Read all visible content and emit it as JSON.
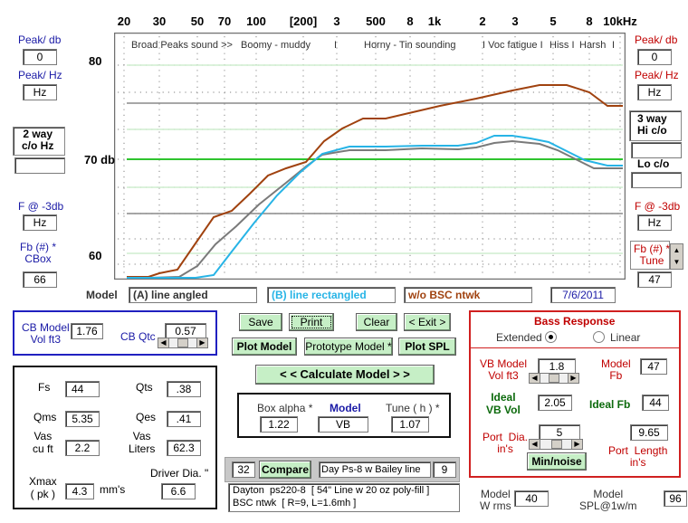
{
  "freq_axis": [
    "20",
    "30",
    "50",
    "70",
    "100",
    "[200]",
    "3",
    "500",
    "8",
    "1k",
    "2",
    "3",
    "5",
    "8",
    "10kHz"
  ],
  "regions": [
    "Broad Peaks sound  >>",
    "Boomy - muddy",
    "I",
    "Horny - Tin sounding",
    "I Voc fatigue I",
    "Hiss I",
    "Harsh",
    "I"
  ],
  "db_labels": {
    "top": "80",
    "mid": "70  db",
    "bottom": "60"
  },
  "left": {
    "peak_db_label": "Peak/ db",
    "peak_db_value": "0",
    "peak_hz_label": "Peak/ Hz",
    "peak_hz_value": "Hz",
    "two_way_label": "2 way\nc/o Hz",
    "two_way_value": "",
    "f3_label": "F @ -3db",
    "f3_value": "Hz",
    "fb_label": "Fb (#) *\nCBox",
    "fb_value": "66"
  },
  "right": {
    "peak_db_label": "Peak/ db",
    "peak_db_value": "0",
    "peak_hz_label": "Peak/ Hz",
    "peak_hz_value": "Hz",
    "three_way_label": "3 way\nHi c/o",
    "three_way_value": "",
    "lo_co_label": "Lo c/o",
    "lo_co_value": "",
    "f3_label": "F @ -3db",
    "f3_value": "Hz",
    "fb_label": "Fb (#) *\nTune",
    "fb_value": "47"
  },
  "model_row": {
    "label": "Model",
    "a": "(A) line angled",
    "b": "(B) line rectangled",
    "c": "w/o BSC ntwk",
    "date": "7/6/2011"
  },
  "cb_model": {
    "vol_label": "CB Model\nVol ft3",
    "vol_value": "1.76",
    "qtc_label": "CB Qtc",
    "qtc_value": "0.57",
    "qtc_slider_level": 0.5
  },
  "buttons": {
    "save": "Save",
    "print": "Print",
    "clear": "Clear",
    "exit": "< Exit >",
    "plot_model": "Plot Model",
    "prototype_model": "Prototype  Model *",
    "plot_spl": "Plot SPL",
    "calculate": "< <    Calculate  Model   > >",
    "compare": "Compare",
    "min_noise": "Min/noise"
  },
  "params": {
    "fs_label": "Fs",
    "fs": "44",
    "qts_label": "Qts",
    "qts": ".38",
    "qms_label": "Qms",
    "qms": "5.35",
    "qes_label": "Qes",
    "qes": ".41",
    "vas_cuft_label": "Vas\ncu ft",
    "vas_cuft": "2.2",
    "vas_l_label": "Vas\nLiters",
    "vas_l": "62.3",
    "xmax_label": "Xmax\n( pk )",
    "xmax": "4.3",
    "xmax_unit": "mm's",
    "dia_label": "Driver Dia. \"",
    "dia": "6.6"
  },
  "box_model": {
    "alpha_label": "Box alpha *",
    "alpha": "1.22",
    "model_label": "Model",
    "model": "VB",
    "tune_label": "Tune ( h ) *",
    "tune": "1.07"
  },
  "compare": {
    "num": "32",
    "name": "Day Ps-8 w Bailey line",
    "num2": "9",
    "description": "Dayton  ps220-8  [ 54\" Line w 20 oz poly-fill ]\nBSC ntwk  [ R=9, L=1.6mh ]"
  },
  "bass": {
    "title": "Bass Response",
    "extended": "Extended",
    "linear": "Linear",
    "selected": "Extended",
    "vb_label": "VB Model\nVol ft3",
    "vb": "1.8",
    "vb_slider_level": 0.5,
    "model_fb_label": "Model\nFb",
    "model_fb": "47",
    "ideal_vb_label": "Ideal\nVB Vol",
    "ideal_vb": "2.05",
    "ideal_fb_label": "Ideal Fb",
    "ideal_fb": "44",
    "port_dia_label": "Port  Dia.\nin's",
    "port_dia": "5",
    "port_dia_slider_level": 0.55,
    "port_len_label": "Port  Length\nin's",
    "port_len": "9.65"
  },
  "bottom": {
    "wrms_label": "Model\nW rms",
    "wrms": "40",
    "spl_label": "Model\nSPL@1w/m",
    "spl": "96"
  },
  "colors": {
    "line_a": "#a0420f",
    "line_b": "#27b4e6",
    "line_c": "#7a7a7a",
    "ref_green": "#2fc42f",
    "gray": "#8a8a8a"
  }
}
